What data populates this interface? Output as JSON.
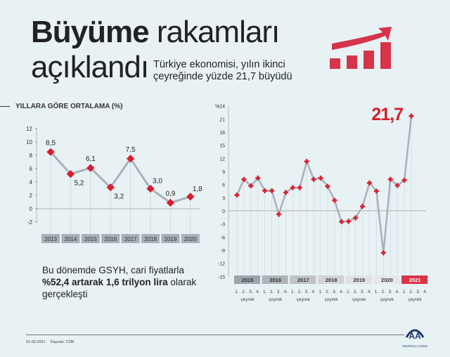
{
  "title": {
    "bold": "Büyüme",
    "light": "rakamları",
    "line2": "açıklandı"
  },
  "subtitle": "Türkiye ekonomisi, yılın ikinci çeyreğinde yüzde 21,7 büyüdü",
  "note": {
    "pre": "Bu dönemde GSYH, cari fiyatlarla ",
    "bold": "%52,4 artarak 1,6 trilyon lira",
    "post": " olarak gerçekleşti"
  },
  "footer": {
    "date": "01.09.2021",
    "source": "Kaynak: TÜİK",
    "logo_text": "ANADOLU AJANSI"
  },
  "colors": {
    "accent": "#d81e2c",
    "line": "#a9b0bb",
    "highlight": "#d6344a"
  },
  "chart_data": [
    {
      "type": "line",
      "title": "YILLARA GÖRE ORTALAMA (%)",
      "categories": [
        "2013",
        "2014",
        "2015",
        "2016",
        "2017",
        "2018",
        "2019",
        "2020"
      ],
      "values": [
        8.5,
        5.2,
        6.1,
        3.2,
        7.5,
        3.0,
        0.9,
        1.8
      ],
      "data_labels": [
        "8,5",
        "5,2",
        "6,1",
        "3,2",
        "7,5",
        "3,0",
        "0,9",
        "1,8"
      ],
      "ylim": [
        -2,
        12
      ],
      "yticks": [
        "-2",
        "0",
        "2",
        "4",
        "6",
        "8",
        "10",
        "12"
      ]
    },
    {
      "type": "line",
      "title": "",
      "ylim": [
        -15,
        24
      ],
      "yticks": [
        "-15",
        "-12",
        "-9",
        "-6",
        "-3",
        "0",
        "3",
        "6",
        "9",
        "12",
        "15",
        "18",
        "21",
        "%24"
      ],
      "years": [
        "2015",
        "2016",
        "2017",
        "2018",
        "2019",
        "2020",
        "2021"
      ],
      "quarter_labels": [
        "1.",
        "2.",
        "3.",
        "4."
      ],
      "quarter_word": "çeyrek",
      "values": [
        3.6,
        7.2,
        5.7,
        7.5,
        4.6,
        4.6,
        -0.8,
        4.2,
        5.3,
        5.3,
        11.3,
        7.2,
        7.5,
        5.6,
        2.4,
        -2.5,
        -2.4,
        -1.6,
        1.0,
        6.4,
        4.5,
        -9.6,
        7.2,
        5.8,
        7.0,
        21.7
      ],
      "highlight_label": "21,7"
    }
  ]
}
